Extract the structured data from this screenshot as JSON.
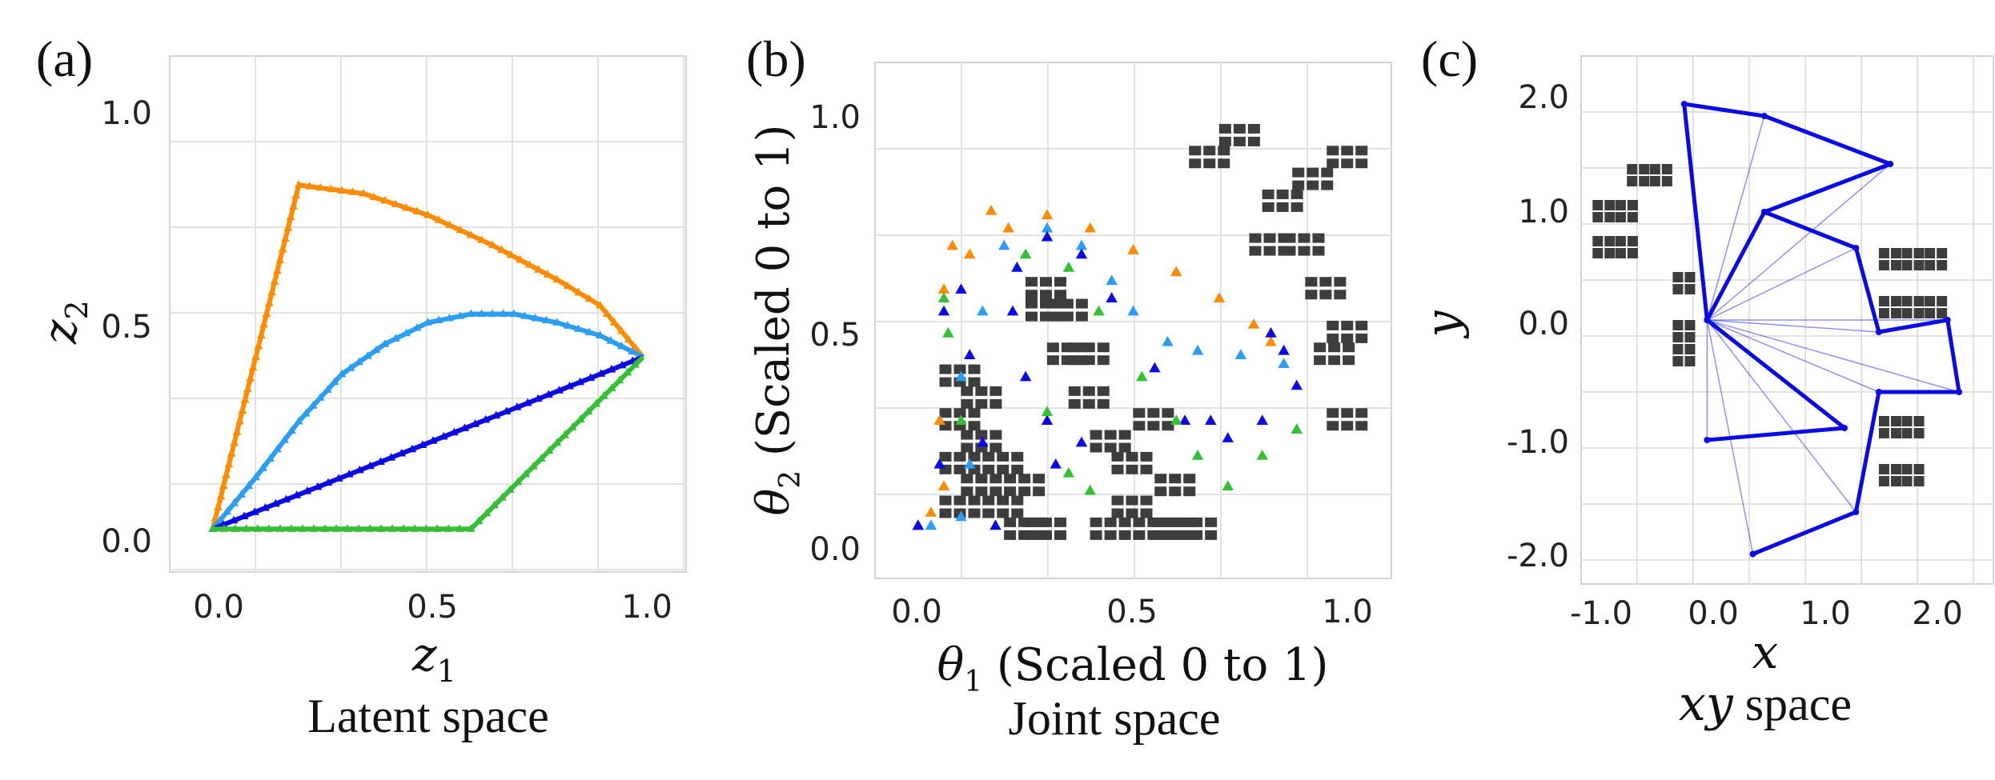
{
  "figure": {
    "panels": [
      {
        "letter": "(a)",
        "xlabel": "z",
        "xlabel_sub": "1",
        "ylabel": "z",
        "ylabel_sub": "2",
        "caption": "Latent space"
      },
      {
        "letter": "(b)",
        "xlabel_sym": "θ",
        "xlabel_sub": "1",
        "xlabel_rest": " (Scaled 0 to 1)",
        "ylabel_sym": "θ",
        "ylabel_sub": "2",
        "ylabel_rest": " (Scaled 0 to 1)",
        "caption": "Joint space"
      },
      {
        "letter": "(c)",
        "xlabel": "x",
        "ylabel": "y",
        "caption_math": "xy",
        "caption_rest": " space"
      }
    ]
  },
  "colors": {
    "orange": "#ff8c00",
    "light_blue": "#2a9df4",
    "blue": "#0a0ae6",
    "green": "#33c033",
    "obstacle": "#3d3d3d",
    "grid": "#e2e2e2"
  },
  "chart_data": [
    {
      "type": "line",
      "title": "",
      "xlim": [
        -0.1,
        1.1
      ],
      "ylim": [
        -0.1,
        1.1
      ],
      "xticks": [
        "0.0",
        "0.5",
        "1.0"
      ],
      "yticks": [
        "0.0",
        "0.5",
        "1.0"
      ],
      "grid": true,
      "series": [
        {
          "color": "orange",
          "marker": "triangle",
          "points": [
            [
              0,
              0
            ],
            [
              0.2,
              0.8
            ],
            [
              0.35,
              0.78
            ],
            [
              0.5,
              0.73
            ],
            [
              0.65,
              0.66
            ],
            [
              0.8,
              0.58
            ],
            [
              0.9,
              0.52
            ],
            [
              1.0,
              0.4
            ]
          ]
        },
        {
          "color": "light_blue",
          "marker": "triangle",
          "points": [
            [
              0,
              0
            ],
            [
              0.1,
              0.12
            ],
            [
              0.2,
              0.25
            ],
            [
              0.3,
              0.36
            ],
            [
              0.4,
              0.43
            ],
            [
              0.5,
              0.48
            ],
            [
              0.6,
              0.5
            ],
            [
              0.7,
              0.5
            ],
            [
              0.8,
              0.48
            ],
            [
              0.9,
              0.45
            ],
            [
              1.0,
              0.4
            ]
          ]
        },
        {
          "color": "blue",
          "marker": "triangle",
          "points": [
            [
              0,
              0
            ],
            [
              1.0,
              0.4
            ]
          ]
        },
        {
          "color": "green",
          "marker": "triangle",
          "points": [
            [
              0,
              0
            ],
            [
              0.6,
              0
            ],
            [
              0.8,
              0.2
            ],
            [
              1.0,
              0.4
            ]
          ]
        }
      ]
    },
    {
      "type": "scatter",
      "title": "",
      "xlim": [
        -0.1,
        1.1
      ],
      "ylim": [
        -0.06,
        1.12
      ],
      "xticks": [
        "0.0",
        "0.5",
        "1.0"
      ],
      "yticks": [
        "0.0",
        "0.5",
        "1.0"
      ],
      "grid": true,
      "series": [
        {
          "color": "orange",
          "marker": "triangle",
          "points": [
            [
              0.03,
              0.09
            ],
            [
              0.06,
              0.15
            ],
            [
              0.05,
              0.3
            ],
            [
              0.06,
              0.6
            ],
            [
              0.08,
              0.7
            ],
            [
              0.12,
              0.68
            ],
            [
              0.17,
              0.78
            ],
            [
              0.21,
              0.74
            ],
            [
              0.3,
              0.77
            ],
            [
              0.4,
              0.74
            ],
            [
              0.5,
              0.69
            ],
            [
              0.6,
              0.64
            ],
            [
              0.7,
              0.58
            ],
            [
              0.78,
              0.52
            ],
            [
              0.82,
              0.48
            ]
          ]
        },
        {
          "color": "light_blue",
          "marker": "triangle",
          "points": [
            [
              0.03,
              0.06
            ],
            [
              0.1,
              0.08
            ],
            [
              0.12,
              0.2
            ],
            [
              0.1,
              0.4
            ],
            [
              0.15,
              0.55
            ],
            [
              0.2,
              0.7
            ],
            [
              0.3,
              0.74
            ],
            [
              0.38,
              0.7
            ],
            [
              0.45,
              0.62
            ],
            [
              0.5,
              0.55
            ],
            [
              0.58,
              0.48
            ],
            [
              0.65,
              0.46
            ],
            [
              0.75,
              0.45
            ],
            [
              0.85,
              0.43
            ]
          ]
        },
        {
          "color": "blue",
          "marker": "triangle",
          "points": [
            [
              0,
              0.06
            ],
            [
              0.05,
              0.2
            ],
            [
              0.06,
              0.55
            ],
            [
              0.1,
              0.6
            ],
            [
              0.12,
              0.45
            ],
            [
              0.15,
              0.25
            ],
            [
              0.18,
              0.06
            ],
            [
              0.0,
              0.06
            ],
            [
              0.23,
              0.65
            ],
            [
              0.3,
              0.72
            ],
            [
              0.38,
              0.68
            ],
            [
              0.45,
              0.58
            ],
            [
              0.55,
              0.42
            ],
            [
              0.62,
              0.3
            ],
            [
              0.68,
              0.3
            ],
            [
              0.72,
              0.26
            ],
            [
              0.8,
              0.3
            ],
            [
              0.88,
              0.38
            ],
            [
              0.85,
              0.46
            ],
            [
              0.82,
              0.5
            ],
            [
              0.3,
              0.3
            ],
            [
              0.25,
              0.4
            ],
            [
              0.22,
              0.55
            ],
            [
              0.32,
              0.2
            ],
            [
              0.38,
              0.25
            ]
          ]
        },
        {
          "color": "green",
          "marker": "triangle",
          "points": [
            [
              0.06,
              0.58
            ],
            [
              0.07,
              0.5
            ],
            [
              0.1,
              0.3
            ],
            [
              0.25,
              0.68
            ],
            [
              0.35,
              0.65
            ],
            [
              0.42,
              0.55
            ],
            [
              0.52,
              0.4
            ],
            [
              0.6,
              0.3
            ],
            [
              0.65,
              0.22
            ],
            [
              0.72,
              0.15
            ],
            [
              0.8,
              0.22
            ],
            [
              0.88,
              0.28
            ],
            [
              0.3,
              0.32
            ],
            [
              0.35,
              0.18
            ],
            [
              0.4,
              0.14
            ]
          ]
        }
      ],
      "obstacles": [
        [
          0.1,
          0.1
        ],
        [
          0.1,
          0.2
        ],
        [
          0.1,
          0.3
        ],
        [
          0.1,
          0.4
        ],
        [
          0.15,
          0.15
        ],
        [
          0.15,
          0.25
        ],
        [
          0.15,
          0.35
        ],
        [
          0.2,
          0.1
        ],
        [
          0.2,
          0.2
        ],
        [
          0.25,
          0.05
        ],
        [
          0.25,
          0.15
        ],
        [
          0.3,
          0.05
        ],
        [
          0.3,
          0.55
        ],
        [
          0.3,
          0.6
        ],
        [
          0.35,
          0.45
        ],
        [
          0.35,
          0.55
        ],
        [
          0.4,
          0.35
        ],
        [
          0.4,
          0.45
        ],
        [
          0.45,
          0.25
        ],
        [
          0.45,
          0.05
        ],
        [
          0.5,
          0.2
        ],
        [
          0.5,
          0.1
        ],
        [
          0.55,
          0.05
        ],
        [
          0.55,
          0.3
        ],
        [
          0.6,
          0.05
        ],
        [
          0.6,
          0.15
        ],
        [
          0.65,
          0.05
        ],
        [
          0.68,
          0.9
        ],
        [
          0.75,
          0.95
        ],
        [
          0.85,
          0.8
        ],
        [
          0.9,
          0.7
        ],
        [
          0.95,
          0.6
        ],
        [
          1.0,
          0.5
        ],
        [
          0.82,
          0.7
        ],
        [
          0.92,
          0.85
        ],
        [
          1.0,
          0.9
        ],
        [
          1.0,
          0.3
        ],
        [
          0.97,
          0.45
        ]
      ]
    },
    {
      "type": "line",
      "title": "",
      "xlim": [
        -1.1,
        2.5
      ],
      "ylim": [
        -2.2,
        2.2
      ],
      "xticks": [
        "-1.0",
        "0.0",
        "1.0",
        "2.0"
      ],
      "yticks": [
        "-2.0",
        "-1.0",
        "0.0",
        "1.0",
        "2.0"
      ],
      "grid": true,
      "series": [
        {
          "color": "blue",
          "name": "",
          "points": [
            [
              0,
              0
            ],
            [
              -0.2,
              1.8
            ],
            [
              0.5,
              1.7
            ],
            [
              1.6,
              1.3
            ],
            [
              0.5,
              0.9
            ],
            [
              0,
              0
            ],
            [
              1.2,
              -0.9
            ],
            [
              0,
              -1.0
            ]
          ]
        },
        {
          "color": "blue",
          "name": "",
          "points": [
            [
              0.5,
              0.9
            ],
            [
              1.3,
              0.6
            ],
            [
              1.5,
              -0.1
            ],
            [
              2.1,
              0.0
            ],
            [
              2.2,
              -0.6
            ],
            [
              1.5,
              -0.6
            ],
            [
              1.3,
              -1.6
            ],
            [
              0.4,
              -1.95
            ]
          ]
        }
      ],
      "obstacles": [
        [
          -1.0,
          1.0
        ],
        [
          -1.0,
          0.7
        ],
        [
          -0.8,
          1.0
        ],
        [
          -0.8,
          0.7
        ],
        [
          -0.7,
          1.3
        ],
        [
          -0.5,
          1.3
        ],
        [
          -0.3,
          0.4
        ],
        [
          -0.3,
          0.0
        ],
        [
          -0.3,
          -0.2
        ],
        [
          1.5,
          0.6
        ],
        [
          1.7,
          0.6
        ],
        [
          1.9,
          0.6
        ],
        [
          1.5,
          0.2
        ],
        [
          1.7,
          0.2
        ],
        [
          1.9,
          0.2
        ],
        [
          1.5,
          -0.8
        ],
        [
          1.7,
          -0.8
        ],
        [
          1.5,
          -1.2
        ],
        [
          1.7,
          -1.2
        ]
      ]
    }
  ]
}
